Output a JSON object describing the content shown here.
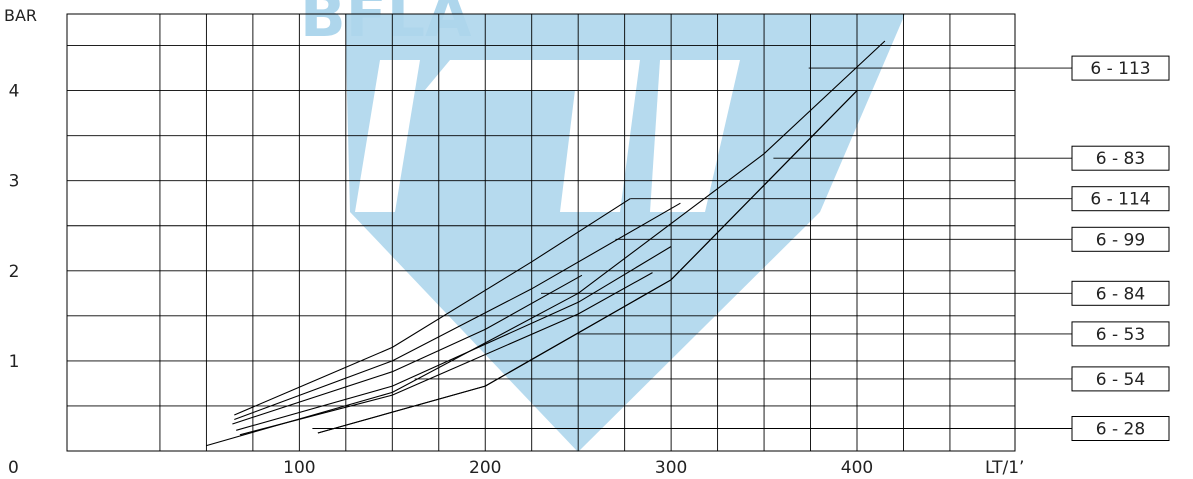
{
  "chart_data": {
    "type": "line",
    "ylabel": "BAR",
    "xlabel": "LT/1’",
    "origin_label": "0",
    "xlim": [
      -25,
      485
    ],
    "ylim": [
      0,
      4.85
    ],
    "x_tick_labels": [
      {
        "value": 100,
        "label": "100"
      },
      {
        "value": 200,
        "label": "200"
      },
      {
        "value": 300,
        "label": "300"
      },
      {
        "value": 400,
        "label": "400"
      }
    ],
    "y_tick_labels": [
      {
        "value": 1,
        "label": "1"
      },
      {
        "value": 2,
        "label": "2"
      },
      {
        "value": 3,
        "label": "3"
      },
      {
        "value": 4,
        "label": "4"
      }
    ],
    "x_gridlines": [
      25,
      50,
      75,
      100,
      125,
      150,
      175,
      200,
      225,
      250,
      275,
      300,
      325,
      350,
      375,
      400,
      425,
      450
    ],
    "y_gridlines": [
      0.5,
      1,
      1.5,
      2,
      2.5,
      3,
      3.5,
      4,
      4.5
    ],
    "grid": true,
    "legend_placement": "right, boxed labels with leader lines",
    "series": [
      {
        "name": "6 - 113",
        "x": [
          50,
          150,
          250,
          350,
          415
        ],
        "y": [
          0.06,
          0.65,
          1.75,
          3.3,
          4.55
        ],
        "label_anchor": [
          374,
          4.25
        ]
      },
      {
        "name": "6 - 83",
        "x": [
          110,
          200,
          300,
          400
        ],
        "y": [
          0.2,
          0.72,
          1.9,
          4.0
        ],
        "label_anchor": [
          355,
          3.25
        ]
      },
      {
        "name": "6 - 114",
        "x": [
          65,
          150,
          225,
          278
        ],
        "y": [
          0.4,
          1.15,
          2.1,
          2.8
        ],
        "label_anchor": [
          278,
          2.8
        ]
      },
      {
        "name": "6 - 99",
        "x": [
          65,
          150,
          225,
          305
        ],
        "y": [
          0.35,
          1.0,
          1.8,
          2.75
        ],
        "label_anchor": [
          270,
          2.35
        ]
      },
      {
        "name": "6 - 84",
        "x": [
          64,
          150,
          200,
          252
        ],
        "y": [
          0.3,
          0.88,
          1.35,
          1.95
        ],
        "label_anchor": [
          230,
          1.75
        ]
      },
      {
        "name": "6 - 53",
        "x": [
          66,
          150,
          250,
          300
        ],
        "y": [
          0.23,
          0.72,
          1.65,
          2.27
        ],
        "label_anchor": [
          250,
          1.3
        ]
      },
      {
        "name": "6 - 54",
        "x": [
          68,
          150,
          250,
          290
        ],
        "y": [
          0.18,
          0.62,
          1.52,
          1.98
        ],
        "label_anchor": [
          162,
          0.8
        ]
      },
      {
        "name": "6 - 28",
        "x": [
          110,
          200,
          300,
          400
        ],
        "y": [
          0.2,
          0.72,
          1.9,
          4.0
        ],
        "label_anchor": [
          107,
          0.25
        ]
      }
    ],
    "legend": [
      {
        "label": "6 - 113",
        "y": 4.25
      },
      {
        "label": "6 - 83",
        "y": 3.25
      },
      {
        "label": "6 - 114",
        "y": 2.8
      },
      {
        "label": "6 - 99",
        "y": 2.35
      },
      {
        "label": "6 - 84",
        "y": 1.75
      },
      {
        "label": "6 - 53",
        "y": 1.3
      },
      {
        "label": "6 - 54",
        "y": 0.8
      },
      {
        "label": "6 - 28",
        "y": 0.25
      }
    ],
    "watermark_text": "BFLA",
    "colors": {
      "grid": "#000000",
      "curve": "#000000",
      "watermark": "#aed6ec",
      "text": "#222222"
    }
  }
}
